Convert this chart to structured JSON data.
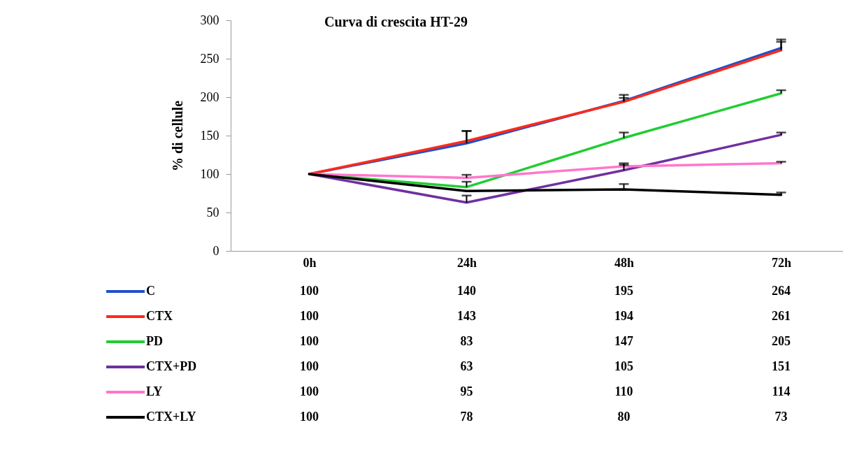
{
  "chart_data": {
    "type": "line",
    "title": "Curva di crescita HT-29",
    "ylabel": "% di cellule",
    "categories": [
      "0h",
      "24h",
      "48h",
      "72h"
    ],
    "series": [
      {
        "name": "C",
        "color": "#1f4fcc",
        "values": [
          100,
          140,
          195,
          264
        ],
        "errors": [
          null,
          [
            140,
            156
          ],
          [
            195,
            203
          ],
          [
            264,
            275
          ]
        ]
      },
      {
        "name": "CTX",
        "color": "#ff2a1a",
        "values": [
          100,
          143,
          194,
          261
        ],
        "errors": [
          null,
          [
            143,
            156
          ],
          [
            194,
            199
          ],
          [
            261,
            272
          ]
        ]
      },
      {
        "name": "PD",
        "color": "#22cc33",
        "values": [
          100,
          83,
          147,
          205
        ],
        "errors": [
          null,
          [
            83,
            90
          ],
          [
            147,
            154
          ],
          [
            205,
            209
          ]
        ]
      },
      {
        "name": "CTX+PD",
        "color": "#7030a0",
        "values": [
          100,
          63,
          105,
          151
        ],
        "errors": [
          null,
          [
            63,
            72
          ],
          [
            105,
            112
          ],
          [
            151,
            154
          ]
        ]
      },
      {
        "name": "LY",
        "color": "#ff77cc",
        "values": [
          100,
          95,
          110,
          114
        ],
        "errors": [
          null,
          [
            95,
            99
          ],
          [
            110,
            114
          ],
          [
            114,
            116
          ]
        ]
      },
      {
        "name": "CTX+LY",
        "color": "#000000",
        "values": [
          100,
          78,
          80,
          73
        ],
        "errors": [
          null,
          null,
          [
            80,
            87
          ],
          [
            73,
            76
          ]
        ]
      }
    ],
    "ylim": [
      0,
      300
    ],
    "yticks": [
      0,
      50,
      100,
      150,
      200,
      250,
      300
    ],
    "grid": false,
    "legend": "bottom",
    "data_labels": true,
    "marker": "none",
    "line_style": "solid"
  }
}
